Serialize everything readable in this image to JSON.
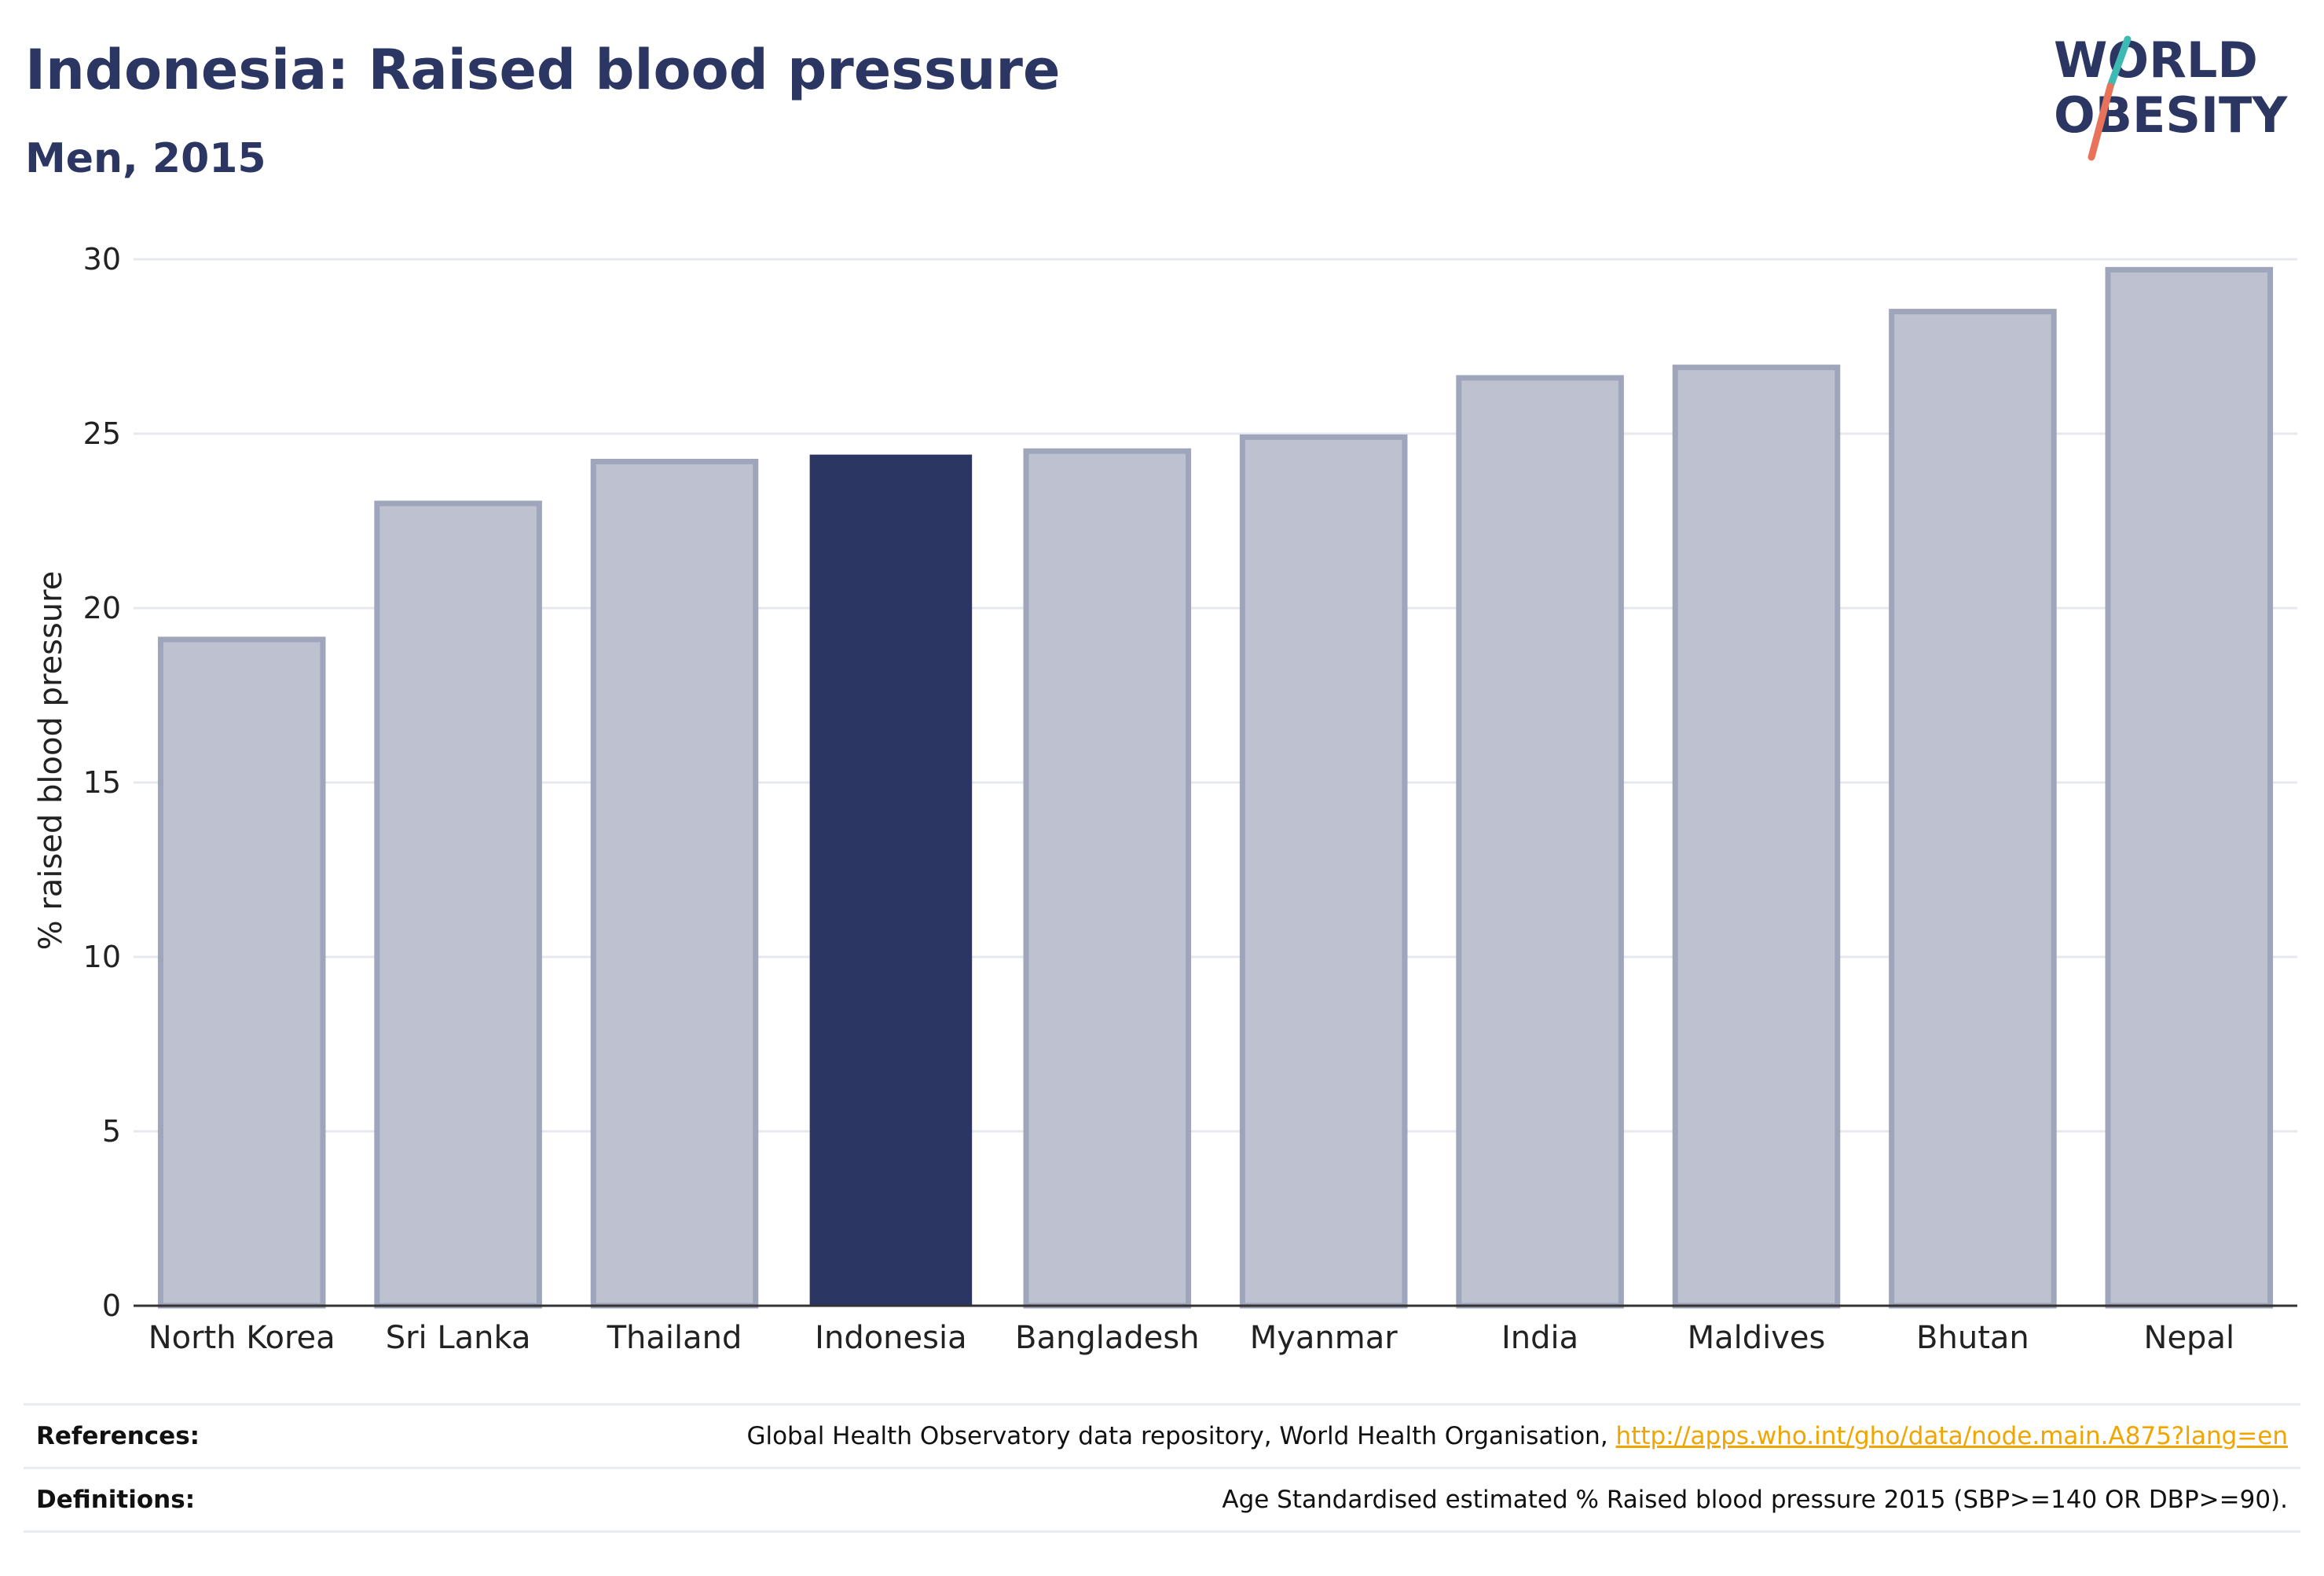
{
  "header": {
    "title": "Indonesia: Raised blood pressure",
    "subtitle": "Men, 2015"
  },
  "logo": {
    "line1": "WORLD",
    "line2": "OBESITY",
    "text_color": "#2b3662",
    "slash_color_top": "#3fb9b3",
    "slash_color_bottom": "#e8735a"
  },
  "chart_data": {
    "type": "bar",
    "title": "Indonesia: Raised blood pressure",
    "subtitle": "Men, 2015",
    "categories": [
      "North Korea",
      "Sri Lanka",
      "Thailand",
      "Indonesia",
      "Bangladesh",
      "Myanmar",
      "India",
      "Maldives",
      "Bhutan",
      "Nepal"
    ],
    "values": [
      19.1,
      23.0,
      24.2,
      24.4,
      24.5,
      24.9,
      26.6,
      26.9,
      28.5,
      29.7
    ],
    "highlight": "Indonesia",
    "xlabel": "",
    "ylabel": "% raised blood pressure",
    "ylim": [
      0,
      30
    ],
    "yticks": [
      0,
      5,
      10,
      15,
      20,
      25,
      30
    ],
    "grid": true,
    "legend": "none",
    "colors": {
      "bar_fill": "#bec1cf",
      "bar_stroke": "#9fa5bb",
      "highlight_fill": "#2b3662",
      "grid": "#e6e8ee",
      "axis": "#333333"
    }
  },
  "footer": {
    "references_label": "References:",
    "references_text": "Global Health Observatory data repository, World Health Organisation, ",
    "references_link": "http://apps.who.int/gho/data/node.main.A875?lang=en",
    "definitions_label": "Definitions:",
    "definitions_text": "Age Standardised estimated % Raised blood pressure 2015 (SBP>=140 OR DBP>=90)."
  }
}
